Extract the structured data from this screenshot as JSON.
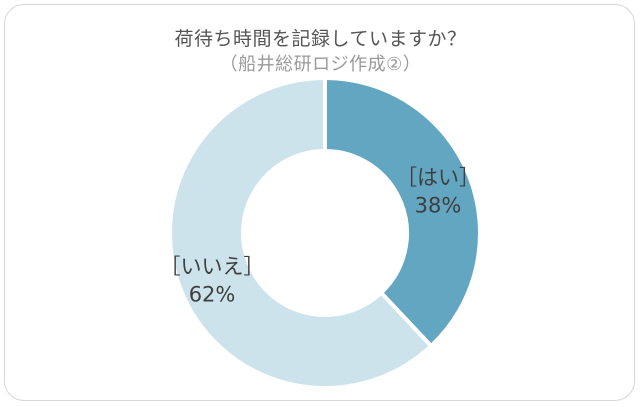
{
  "chart_data": {
    "type": "pie",
    "variant": "donut",
    "title": "荷待ち時間を記録していますか？",
    "subtitle": "（船井総研ロジ作成②）",
    "slices": [
      {
        "label": "［はい］",
        "value": 38,
        "value_text": "38%",
        "color": "#62a6c1"
      },
      {
        "label": "［いいえ］",
        "value": 62,
        "value_text": "62%",
        "color": "#cde3ec"
      }
    ],
    "legend": "none"
  }
}
